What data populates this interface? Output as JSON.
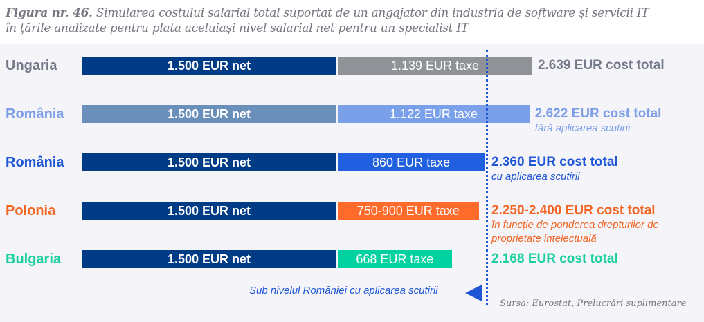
{
  "title": {
    "prefix": "Figura nr. 46.",
    "line1": " Simularea costului salarial total suportat de un angajator din industria de software și servicii IT",
    "line2": "în țările analizate pentru plata aceluiași nivel salarial net pentru un specialist IT"
  },
  "chart_data": {
    "type": "bar",
    "stacked": true,
    "orientation": "horizontal",
    "unit": "EUR",
    "rows": [
      {
        "country": "Ungaria",
        "net": 1500,
        "tax": 1139,
        "net_label": "1.500 EUR net",
        "tax_label": "1.139 EUR taxe",
        "total_label": "2.639 EUR cost total",
        "note": "",
        "label_color": "#737988",
        "net_color": "#003b85",
        "tax_color": "#8f9296",
        "total_color": "#737988"
      },
      {
        "country": "România",
        "net": 1500,
        "tax": 1122,
        "net_label": "1.500 EUR net",
        "tax_label": "1.122 EUR taxe",
        "total_label": "2.622 EUR cost total",
        "note": "fără aplicarea scutirii",
        "label_color": "#7d9ee6",
        "net_color": "#6b8fbb",
        "tax_color": "#7aa0ea",
        "total_color": "#7d9ee6"
      },
      {
        "country": "România",
        "net": 1500,
        "tax": 860,
        "net_label": "1.500 EUR net",
        "tax_label": "860 EUR taxe",
        "total_label": "2.360 EUR cost total",
        "note": "cu aplicarea scutirii",
        "label_color": "#1e56d6",
        "net_color": "#003b85",
        "tax_color": "#1f5fe0",
        "total_color": "#1e56d6"
      },
      {
        "country": "Polonia",
        "net": 1500,
        "tax": 825,
        "tax_range": [
          750,
          900
        ],
        "net_label": "1.500 EUR net",
        "tax_label": "750-900 EUR taxe",
        "total_label": "2.250-2.400 EUR cost total",
        "note": "în funcție de ponderea drepturilor de proprietate intelectuală",
        "label_color": "#f26522",
        "net_color": "#003b85",
        "tax_color": "#ff6b2b",
        "total_color": "#f26522"
      },
      {
        "country": "Bulgaria",
        "net": 1500,
        "tax": 668,
        "net_label": "1.500 EUR net",
        "tax_label": "668 EUR taxe",
        "total_label": "2.168 EUR cost total",
        "note": "",
        "label_color": "#1ccfa0",
        "net_color": "#003b85",
        "tax_color": "#00d1a0",
        "total_color": "#1ccfa0"
      }
    ],
    "reference_line": {
      "value": 2360,
      "label": "Sub nivelul României cu aplicarea scutirii"
    }
  },
  "source": "Sursa: Eurostat, Prelucrări suplimentare"
}
